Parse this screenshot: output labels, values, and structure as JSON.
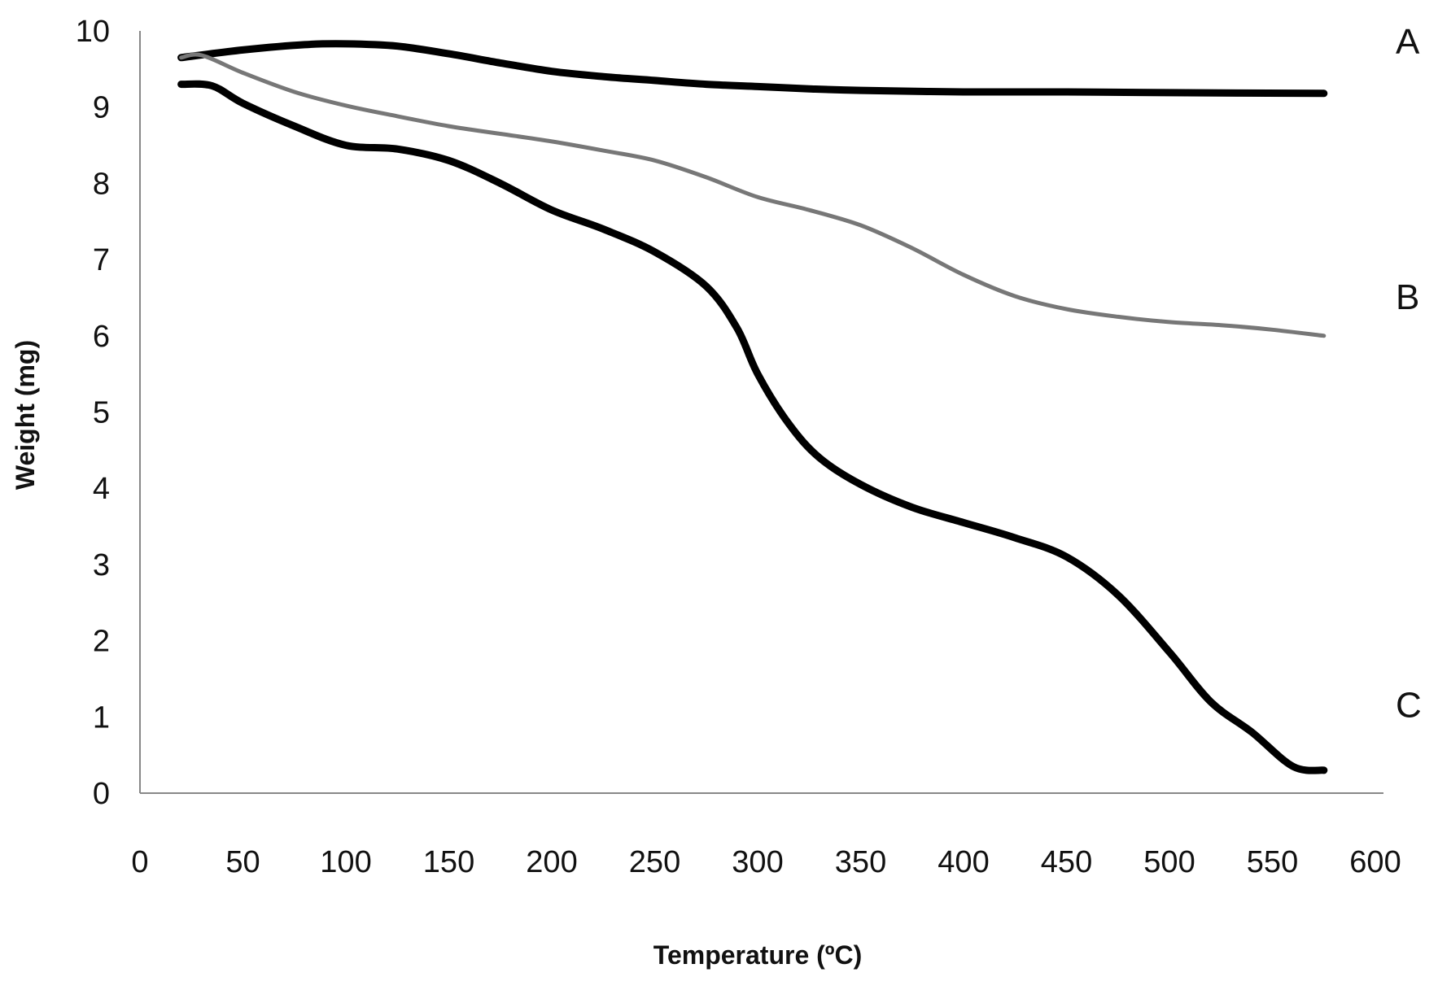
{
  "chart_data": {
    "type": "line",
    "title": "",
    "xlabel": "Temperature (ºC)",
    "ylabel": "Weight (mg)",
    "xlim": [
      0,
      600
    ],
    "ylim": [
      0,
      10
    ],
    "x_ticks": [
      "0",
      "50",
      "100",
      "150",
      "200",
      "250",
      "300",
      "350",
      "400",
      "450",
      "500",
      "550",
      "600"
    ],
    "y_ticks": [
      "0",
      "1",
      "2",
      "3",
      "4",
      "5",
      "6",
      "7",
      "8",
      "9",
      "10"
    ],
    "grid": false,
    "series": [
      {
        "name": "A",
        "color": "#000000",
        "points": [
          [
            20,
            9.65
          ],
          [
            50,
            9.75
          ],
          [
            80,
            9.82
          ],
          [
            100,
            9.83
          ],
          [
            125,
            9.8
          ],
          [
            150,
            9.7
          ],
          [
            175,
            9.58
          ],
          [
            200,
            9.47
          ],
          [
            225,
            9.4
          ],
          [
            250,
            9.35
          ],
          [
            275,
            9.3
          ],
          [
            300,
            9.27
          ],
          [
            325,
            9.24
          ],
          [
            350,
            9.22
          ],
          [
            400,
            9.2
          ],
          [
            450,
            9.2
          ],
          [
            500,
            9.19
          ],
          [
            575,
            9.18
          ]
        ]
      },
      {
        "name": "B",
        "color": "#777777",
        "points": [
          [
            20,
            9.65
          ],
          [
            30,
            9.68
          ],
          [
            50,
            9.45
          ],
          [
            75,
            9.2
          ],
          [
            100,
            9.02
          ],
          [
            125,
            8.88
          ],
          [
            150,
            8.75
          ],
          [
            175,
            8.65
          ],
          [
            200,
            8.55
          ],
          [
            225,
            8.43
          ],
          [
            250,
            8.3
          ],
          [
            275,
            8.08
          ],
          [
            300,
            7.82
          ],
          [
            325,
            7.65
          ],
          [
            350,
            7.45
          ],
          [
            375,
            7.15
          ],
          [
            400,
            6.8
          ],
          [
            425,
            6.52
          ],
          [
            450,
            6.35
          ],
          [
            475,
            6.25
          ],
          [
            500,
            6.18
          ],
          [
            525,
            6.14
          ],
          [
            550,
            6.08
          ],
          [
            575,
            6.0
          ]
        ]
      },
      {
        "name": "C",
        "color": "#000000",
        "points": [
          [
            20,
            9.3
          ],
          [
            35,
            9.28
          ],
          [
            50,
            9.05
          ],
          [
            75,
            8.75
          ],
          [
            100,
            8.5
          ],
          [
            125,
            8.45
          ],
          [
            150,
            8.3
          ],
          [
            175,
            8.0
          ],
          [
            200,
            7.65
          ],
          [
            225,
            7.4
          ],
          [
            250,
            7.1
          ],
          [
            275,
            6.65
          ],
          [
            290,
            6.1
          ],
          [
            300,
            5.5
          ],
          [
            315,
            4.85
          ],
          [
            330,
            4.4
          ],
          [
            350,
            4.05
          ],
          [
            375,
            3.75
          ],
          [
            400,
            3.55
          ],
          [
            425,
            3.35
          ],
          [
            450,
            3.1
          ],
          [
            475,
            2.6
          ],
          [
            500,
            1.85
          ],
          [
            520,
            1.2
          ],
          [
            540,
            0.8
          ],
          [
            560,
            0.35
          ],
          [
            575,
            0.3
          ]
        ]
      }
    ],
    "series_labels": [
      "A",
      "B",
      "C"
    ]
  }
}
